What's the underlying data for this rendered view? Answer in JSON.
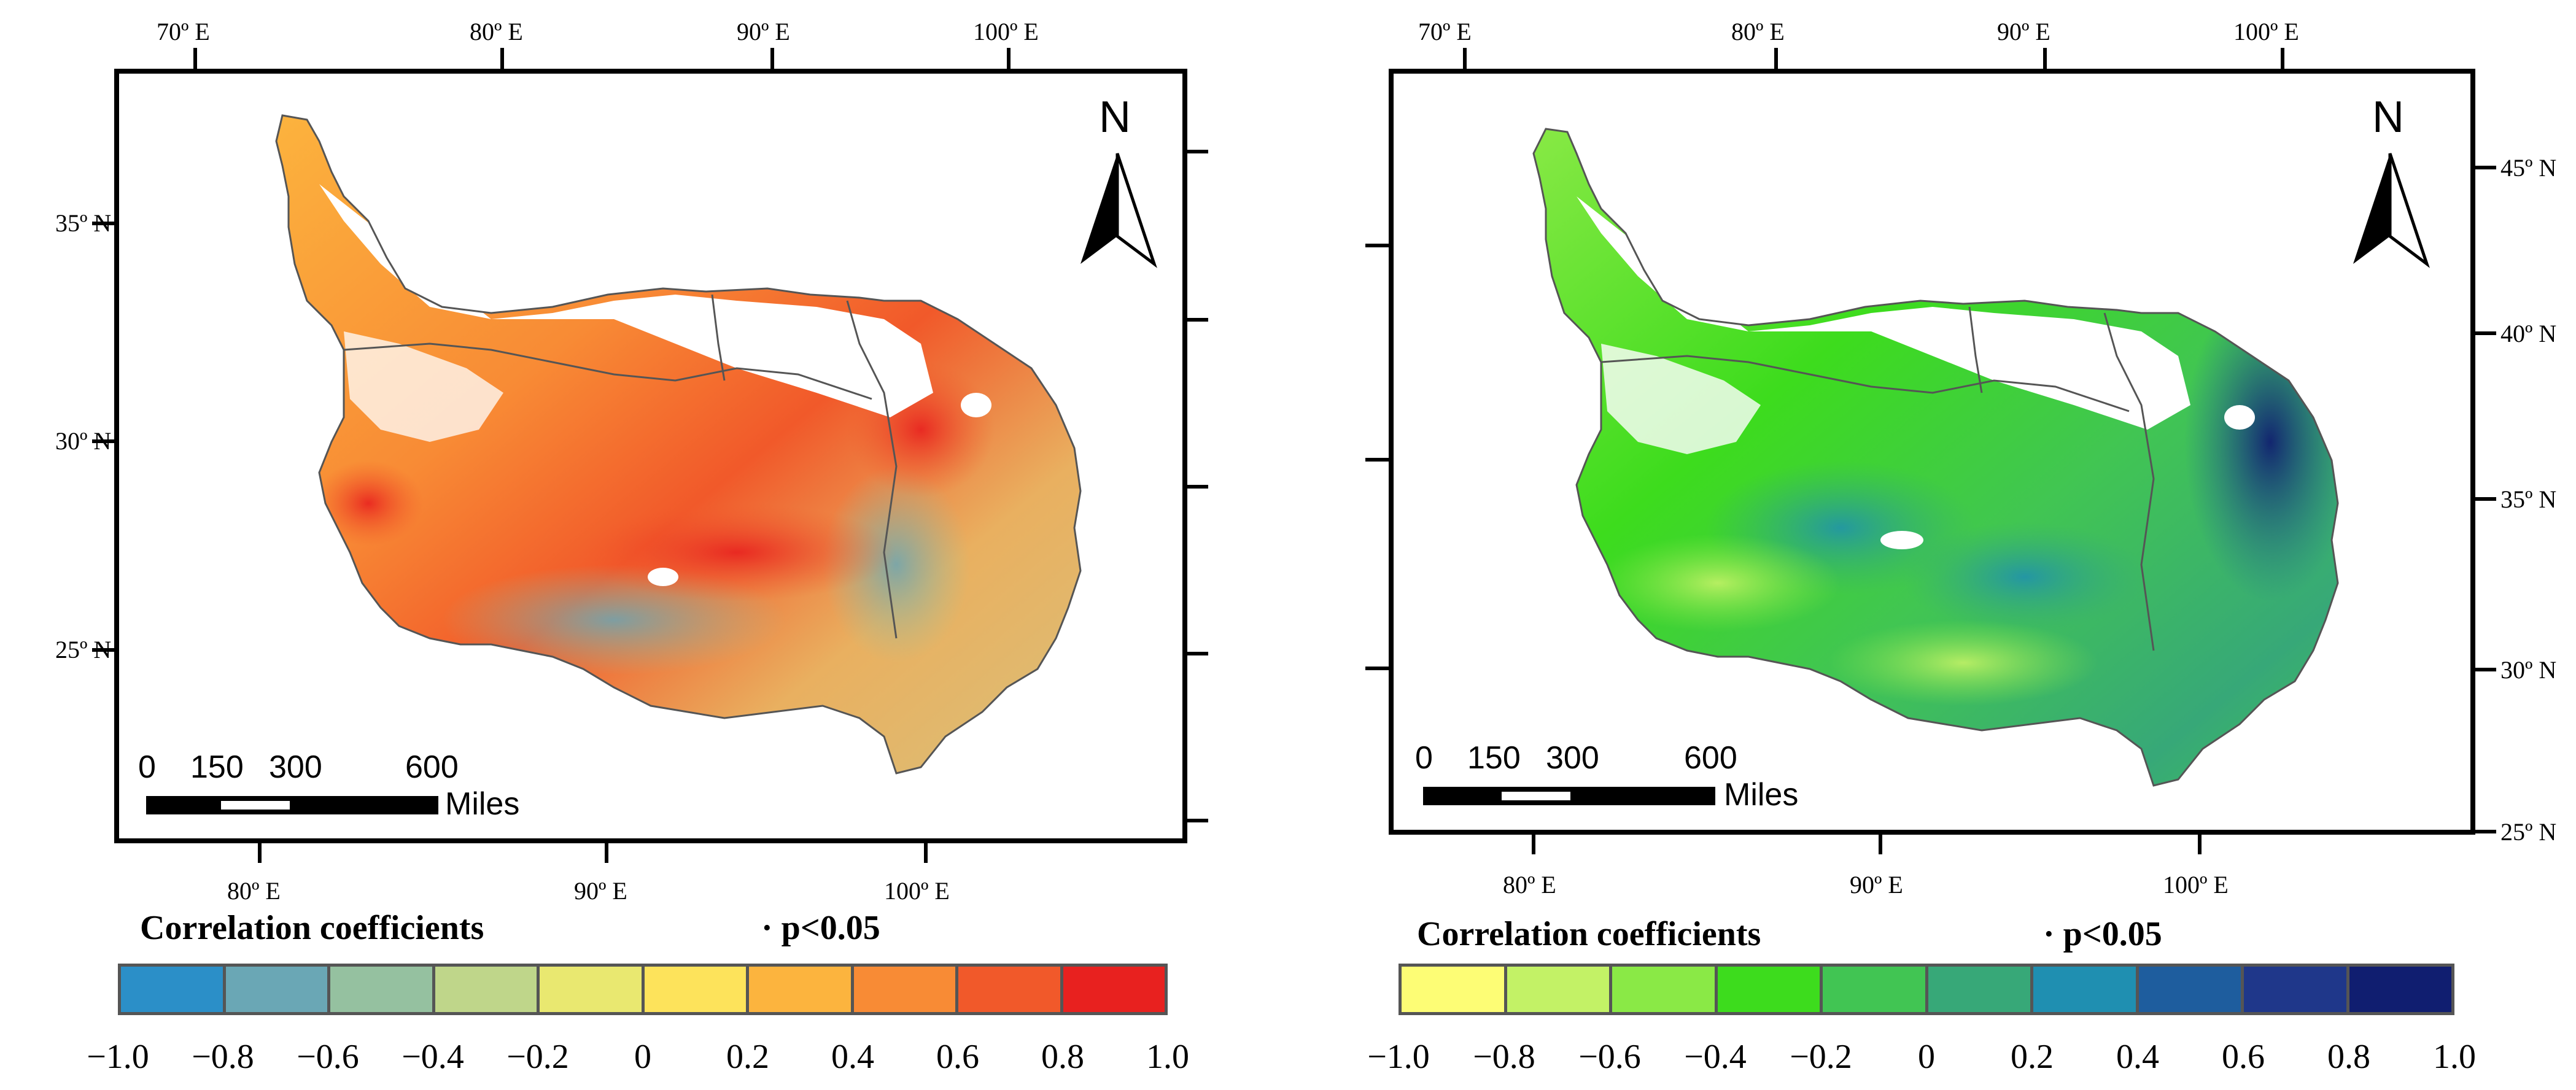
{
  "panels": [
    {
      "top_ticks": [
        "70º E",
        "80º E",
        "90º E",
        "100º E"
      ],
      "bottom_ticks": [
        "80º E",
        "90º E",
        "100º E"
      ],
      "left_ticks": [
        "35º N",
        "30º N",
        "25º N"
      ],
      "north_label": "N",
      "scale_numbers": [
        "0",
        "150",
        "300",
        "600"
      ],
      "scale_unit": "Miles",
      "legend_title": "Correlation coefficients",
      "legend_significance": "· p<0.05",
      "legend_labels": [
        "−1.0",
        "−0.8",
        "−0.6",
        "−0.4",
        "−0.2",
        "0",
        "0.2",
        "0.4",
        "0.6",
        "0.8",
        "1.0"
      ],
      "legend_colors": [
        "#2b8fc8",
        "#6aa7b5",
        "#95c1a0",
        "#bfd68a",
        "#e9e870",
        "#fde35b",
        "#fcb43e",
        "#f88b35",
        "#f1592a",
        "#e8211f"
      ]
    },
    {
      "top_ticks": [
        "70º E",
        "80º E",
        "90º E",
        "100º E"
      ],
      "bottom_ticks": [
        "80º E",
        "90º E",
        "100º E"
      ],
      "right_ticks": [
        "45º N",
        "40º N",
        "35º N",
        "30º N",
        "25º N"
      ],
      "north_label": "N",
      "scale_numbers": [
        "0",
        "150",
        "300",
        "600"
      ],
      "scale_unit": "Miles",
      "legend_title": "Correlation coefficients",
      "legend_significance": "· p<0.05",
      "legend_labels": [
        "−1.0",
        "−0.8",
        "−0.6",
        "−0.4",
        "−0.2",
        "0",
        "0.2",
        "0.4",
        "0.6",
        "0.8",
        "1.0"
      ],
      "legend_colors": [
        "#fdfd75",
        "#c3f266",
        "#8ae946",
        "#3ddc1d",
        "#41c553",
        "#37a878",
        "#1f8fb1",
        "#1e5d9e",
        "#1f378a",
        "#101e70"
      ]
    }
  ]
}
